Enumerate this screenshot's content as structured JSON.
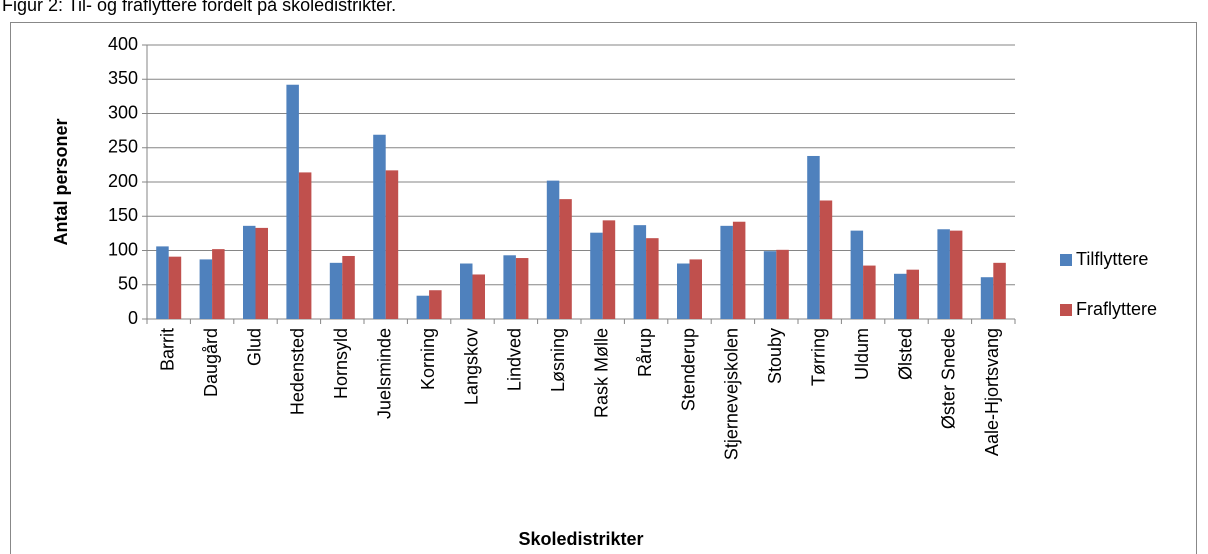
{
  "chart_data": {
    "type": "bar",
    "title": "Figur 2: Til- og fraflyttere fordelt på skoledistrikter.",
    "xlabel": "Skoledistrikter",
    "ylabel": "Antal personer",
    "categories": [
      "Barrit",
      "Daugård",
      "Glud",
      "Hedensted",
      "Hornsyld",
      "Juelsminde",
      "Korning",
      "Langskov",
      "Lindved",
      "Løsning",
      "Rask Mølle",
      "Rårup",
      "Stenderup",
      "Stjernevejskolen",
      "Stouby",
      "Tørring",
      "Uldum",
      "Ølsted",
      "Øster Snede",
      "Aale-Hjortsvang"
    ],
    "series": [
      {
        "name": "Tilflyttere",
        "color": "#4f81bd",
        "values": [
          106,
          87,
          136,
          342,
          82,
          269,
          34,
          81,
          93,
          202,
          126,
          137,
          81,
          136,
          99,
          238,
          129,
          66,
          131,
          61
        ]
      },
      {
        "name": "Fraflyttere",
        "color": "#c0504d",
        "values": [
          91,
          102,
          133,
          214,
          92,
          217,
          42,
          65,
          89,
          175,
          144,
          118,
          87,
          142,
          101,
          173,
          78,
          72,
          129,
          82
        ]
      }
    ],
    "ylim": [
      0,
      400
    ],
    "yticks": [
      0,
      50,
      100,
      150,
      200,
      250,
      300,
      350,
      400
    ],
    "grid": true,
    "legend": "right"
  }
}
